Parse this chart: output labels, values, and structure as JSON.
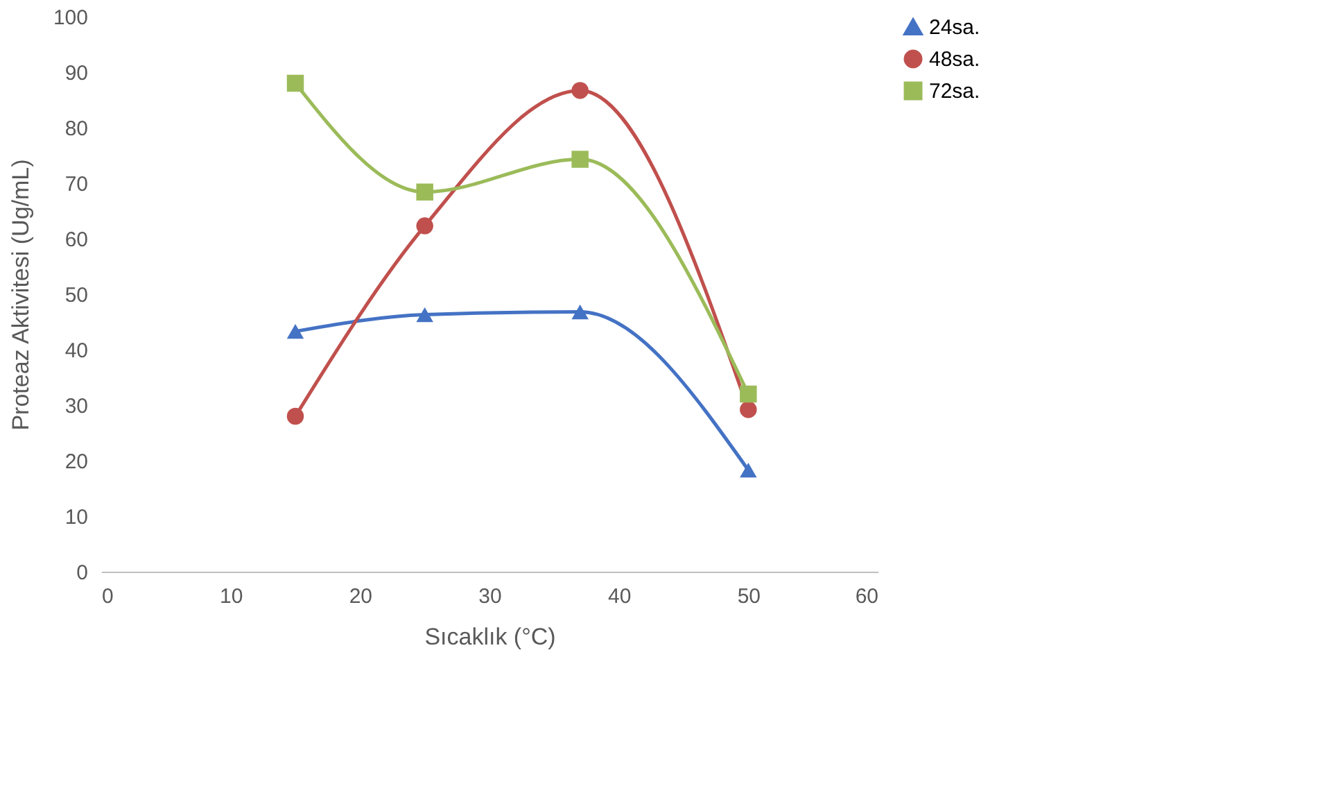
{
  "chart_data": {
    "type": "line",
    "xlabel": "Sıcaklık (°C)",
    "ylabel": "Proteaz Aktivitesi (Ug/mL)",
    "x": [
      15,
      25,
      37,
      50
    ],
    "series": [
      {
        "name": "24sa.",
        "color": "#4472c4",
        "marker": "triangle",
        "values": [
          43.3,
          46.3,
          46.8,
          18.3
        ]
      },
      {
        "name": "48sa.",
        "color": "#c0504d",
        "marker": "circle",
        "values": [
          28,
          62.3,
          86.7,
          29.2
        ]
      },
      {
        "name": "72sa.",
        "color": "#9bbb59",
        "marker": "square",
        "values": [
          88,
          68.4,
          74.3,
          32
        ]
      }
    ],
    "xlim": [
      0,
      60
    ],
    "xticks": [
      0,
      10,
      20,
      30,
      40,
      50,
      60
    ],
    "ylim": [
      0,
      100
    ],
    "yticks": [
      0,
      10,
      20,
      30,
      40,
      50,
      60,
      70,
      80,
      90,
      100
    ],
    "grid": false,
    "legend": "right",
    "line_style": "solid"
  }
}
